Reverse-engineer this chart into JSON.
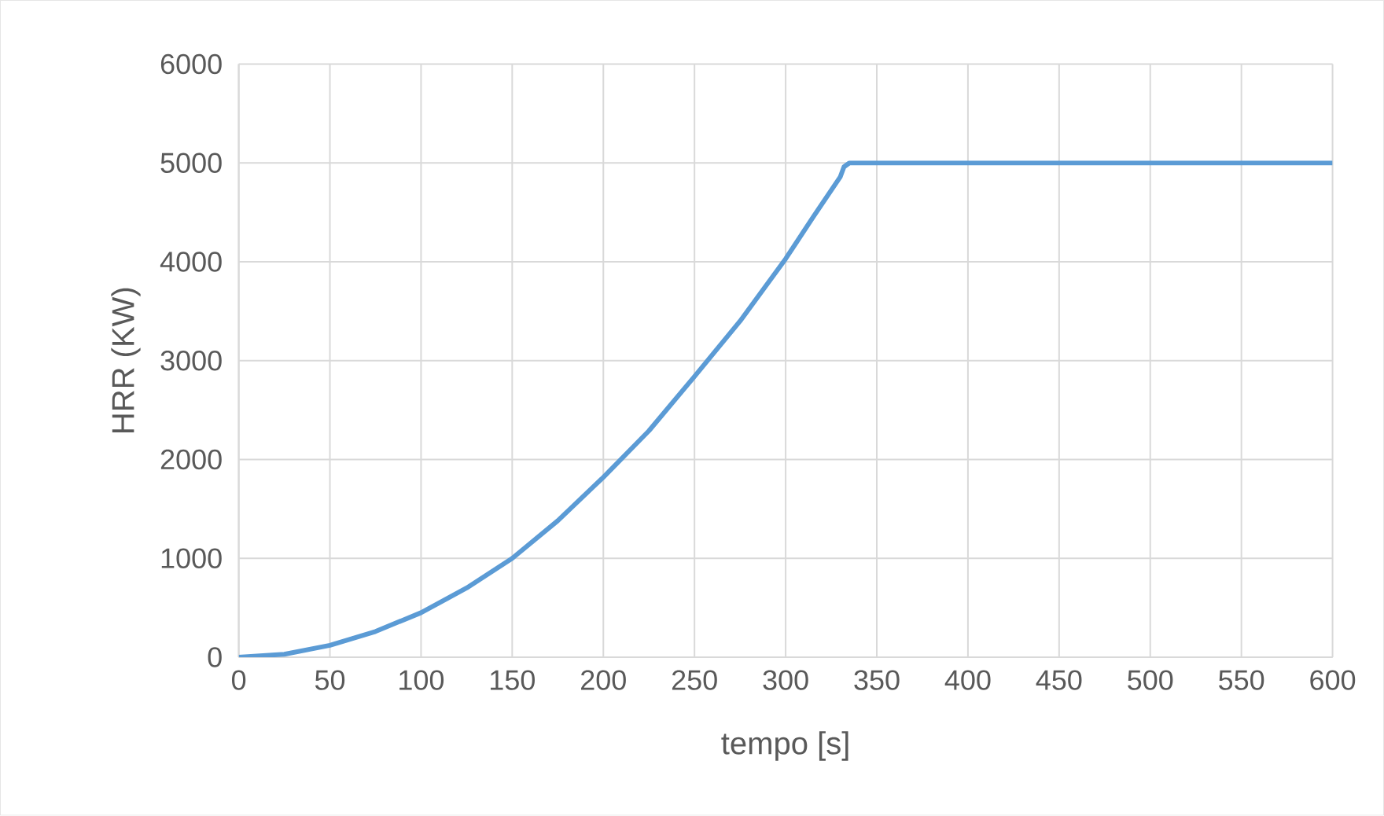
{
  "chart_data": {
    "type": "line",
    "xlabel": "tempo [s]",
    "ylabel": "HRR (KW)",
    "x": [
      0,
      25,
      50,
      75,
      100,
      125,
      150,
      175,
      200,
      225,
      250,
      275,
      300,
      315,
      330,
      332,
      335,
      350,
      400,
      450,
      500,
      550,
      600
    ],
    "series": [
      {
        "color": "#5b9bd5",
        "values": [
          0,
          30,
          120,
          260,
          450,
          700,
          1000,
          1380,
          1820,
          2290,
          2840,
          3400,
          4030,
          4450,
          4860,
          4960,
          5000,
          5000,
          5000,
          5000,
          5000,
          5000,
          5000
        ]
      }
    ],
    "xlim": [
      0,
      600
    ],
    "ylim": [
      0,
      6000
    ],
    "xticks": [
      0,
      50,
      100,
      150,
      200,
      250,
      300,
      350,
      400,
      450,
      500,
      550,
      600
    ],
    "yticks": [
      0,
      1000,
      2000,
      3000,
      4000,
      5000,
      6000
    ],
    "grid": true,
    "marker": "none",
    "line_style": "solid",
    "legend": false
  }
}
